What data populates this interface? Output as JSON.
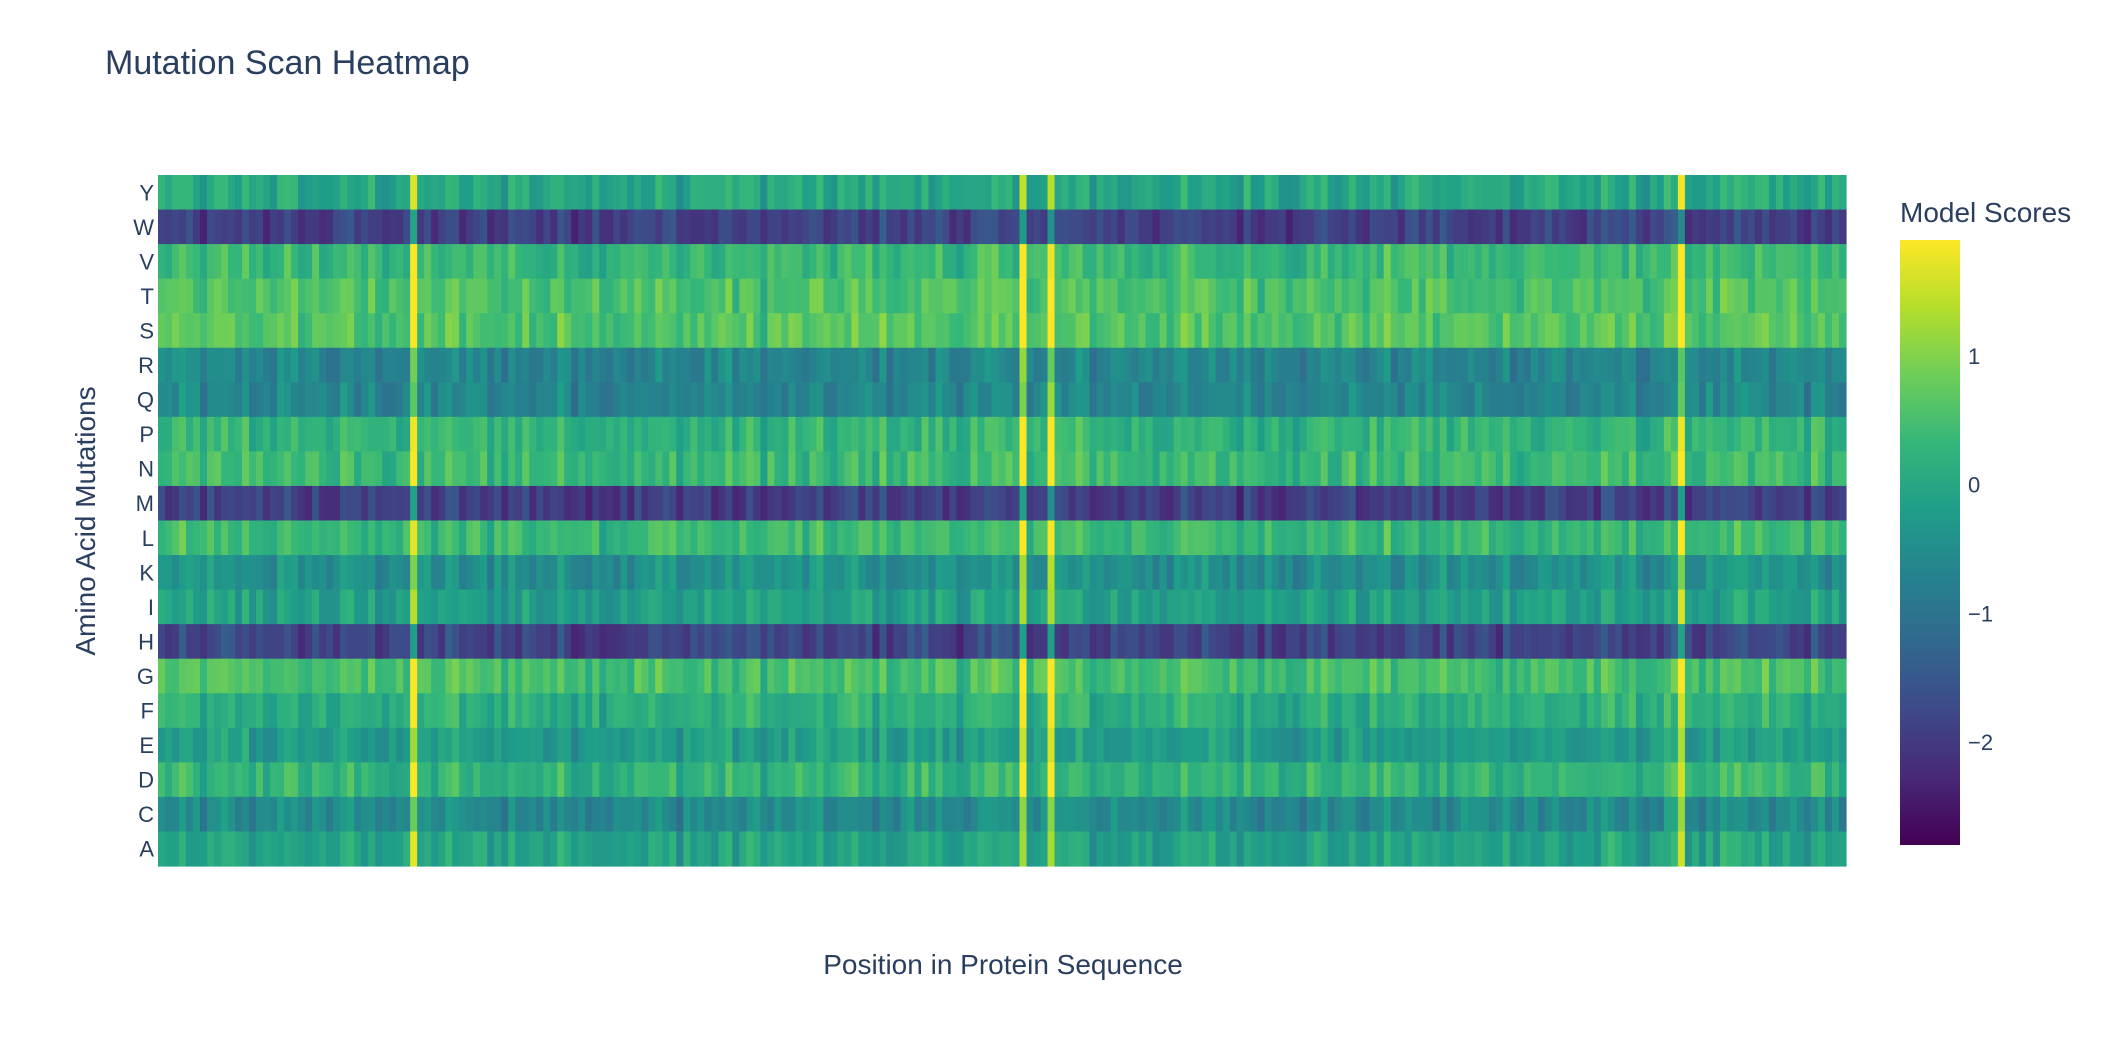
{
  "chart_data": {
    "type": "heatmap",
    "title": "Mutation Scan Heatmap",
    "xlabel": "Position in Protein Sequence",
    "ylabel": "Amino Acid Mutations",
    "colorbar_title": "Model Scores",
    "colorscale": "Viridis",
    "colorscale_stops": [
      "#440154",
      "#482878",
      "#3e4989",
      "#31688e",
      "#26828e",
      "#1f9e89",
      "#35b779",
      "#6ece58",
      "#b5de2b",
      "#fde725"
    ],
    "zmin": -2.8,
    "zmax": 1.9,
    "colorbar_ticks": [
      1,
      0,
      -1,
      -2
    ],
    "colorbar_tick_labels": [
      "1",
      "0",
      "−1",
      "−2"
    ],
    "rows": [
      "Y",
      "W",
      "V",
      "T",
      "S",
      "R",
      "Q",
      "P",
      "N",
      "M",
      "L",
      "K",
      "I",
      "H",
      "G",
      "F",
      "E",
      "D",
      "C",
      "A"
    ],
    "row_means": [
      0.0,
      -1.9,
      0.35,
      0.55,
      0.6,
      -0.65,
      -0.65,
      0.25,
      0.35,
      -1.95,
      0.35,
      -0.45,
      -0.15,
      -1.85,
      0.5,
      0.15,
      -0.2,
      0.25,
      -0.55,
      -0.1
    ],
    "num_positions": 241,
    "bright_columns": [
      36,
      123,
      127,
      217
    ],
    "x_tick_labels": []
  }
}
